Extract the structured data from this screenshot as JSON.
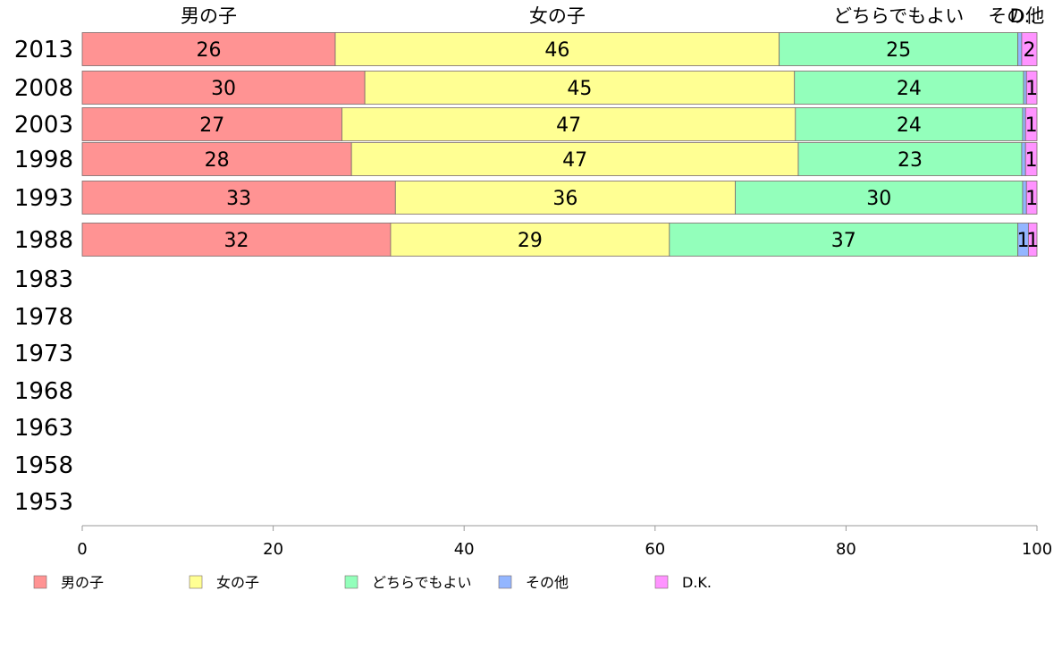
{
  "chart_data": {
    "type": "bar",
    "orientation": "horizontal",
    "stacked": true,
    "title": "",
    "xlabel": "",
    "ylabel": "",
    "xlim": [
      0,
      100
    ],
    "x_ticks": [
      "0",
      "20",
      "40",
      "60",
      "80",
      "100"
    ],
    "grid": false,
    "legend_position": "bottom",
    "categories": [
      "2013",
      "2008",
      "2003",
      "1998",
      "1993",
      "1988",
      "1983",
      "1978",
      "1973",
      "1968",
      "1963",
      "1958",
      "1953"
    ],
    "top_labels": [
      "男の子",
      "女の子",
      "どちらでもよい",
      "その他",
      "D.."
    ],
    "series": [
      {
        "name": "男の子",
        "color": "#ff9393",
        "values": [
          26.5,
          29.6,
          27.2,
          28.2,
          32.8,
          32.3,
          null,
          null,
          null,
          null,
          null,
          null,
          null
        ],
        "labels": [
          "26",
          "30",
          "27",
          "28",
          "33",
          "32",
          "",
          "",
          "",
          "",
          "",
          "",
          ""
        ]
      },
      {
        "name": "女の子",
        "color": "#ffff93",
        "values": [
          46.5,
          45.0,
          47.5,
          46.8,
          35.6,
          29.2,
          null,
          null,
          null,
          null,
          null,
          null,
          null
        ],
        "labels": [
          "46",
          "45",
          "47",
          "47",
          "36",
          "29",
          "",
          "",
          "",
          "",
          "",
          "",
          ""
        ]
      },
      {
        "name": "どちらでもよい",
        "color": "#93ffbb",
        "values": [
          25.0,
          24.0,
          23.8,
          23.4,
          30.1,
          36.5,
          null,
          null,
          null,
          null,
          null,
          null,
          null
        ],
        "labels": [
          "25",
          "24",
          "24",
          "23",
          "30",
          "37",
          "",
          "",
          "",
          "",
          "",
          "",
          ""
        ]
      },
      {
        "name": "その他",
        "color": "#93b6ff",
        "values": [
          0.4,
          0.3,
          0.3,
          0.4,
          0.4,
          1.1,
          null,
          null,
          null,
          null,
          null,
          null,
          null
        ],
        "labels": [
          "",
          "",
          "",
          "",
          "",
          "1",
          "",
          "",
          "",
          "",
          "",
          "",
          ""
        ]
      },
      {
        "name": "D.K.",
        "color": "#ff93ff",
        "values": [
          1.6,
          1.1,
          1.2,
          1.2,
          1.1,
          0.9,
          null,
          null,
          null,
          null,
          null,
          null,
          null
        ],
        "labels": [
          "2",
          "1",
          "1",
          "1",
          "1",
          "1",
          "",
          "",
          "",
          "",
          "",
          "",
          ""
        ]
      }
    ]
  }
}
